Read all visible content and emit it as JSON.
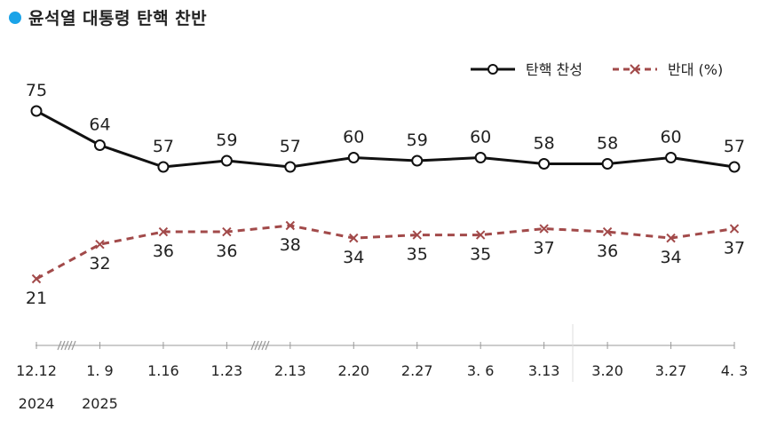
{
  "title": "윤석열 대통령 탄핵 찬반",
  "colors": {
    "title_dot": "#1aa3e8",
    "approve": "#111111",
    "oppose": "#a24a4a",
    "axis": "#999999"
  },
  "legend": {
    "approve": "탄핵 찬성",
    "oppose": "반대 (%)",
    "position": "top-right"
  },
  "chart_data": {
    "type": "line",
    "title": "윤석열 대통령 탄핵 찬반",
    "categories": [
      "12.12",
      "1. 9",
      "1.16",
      "1.23",
      "2.13",
      "2.20",
      "2.27",
      "3. 6",
      "3.13",
      "3.20",
      "3.27",
      "4. 3"
    ],
    "year_labels": [
      "2024",
      "2025"
    ],
    "series": [
      {
        "name": "탄핵 찬성",
        "values": [
          75,
          64,
          57,
          59,
          57,
          60,
          59,
          60,
          58,
          58,
          60,
          57
        ],
        "marker": "circle",
        "style": "solid"
      },
      {
        "name": "반대 (%)",
        "values": [
          21,
          32,
          36,
          36,
          38,
          34,
          35,
          35,
          37,
          36,
          34,
          37
        ],
        "marker": "x",
        "style": "dashed"
      }
    ],
    "axis_breaks_after": [
      "12.12",
      "1.23"
    ],
    "grid": false
  }
}
